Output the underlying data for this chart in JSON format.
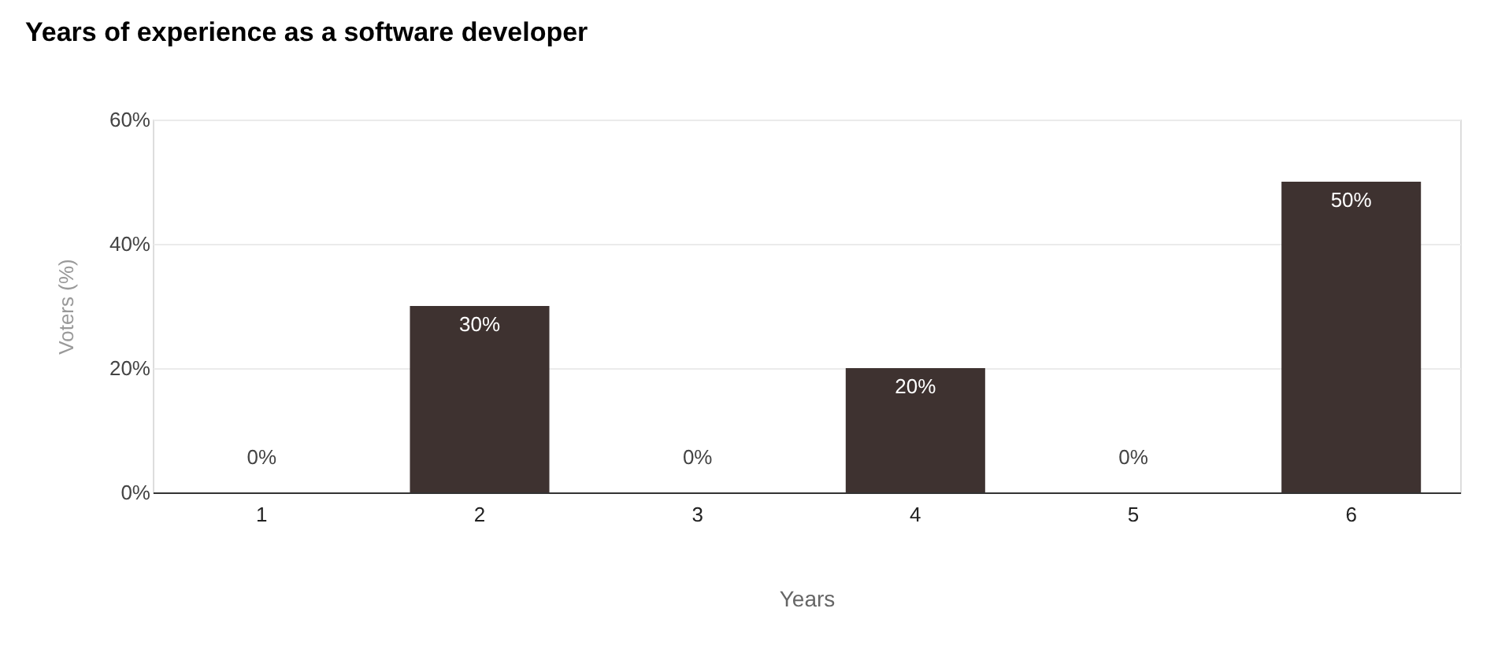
{
  "chart_data": {
    "type": "bar",
    "title": "Years of experience as a software developer",
    "xlabel": "Years",
    "ylabel": "Voters (%)",
    "categories": [
      "1",
      "2",
      "3",
      "4",
      "5",
      "6"
    ],
    "values": [
      0,
      30,
      0,
      20,
      0,
      50
    ],
    "value_labels": [
      "0%",
      "30%",
      "0%",
      "20%",
      "0%",
      "50%"
    ],
    "color": "#3e3230",
    "ylim": [
      0,
      60
    ],
    "yticks": [
      {
        "value": 0,
        "label": "0%"
      },
      {
        "value": 20,
        "label": "20%"
      },
      {
        "value": 40,
        "label": "40%"
      },
      {
        "value": 60,
        "label": "60%"
      }
    ],
    "grid": "y"
  }
}
